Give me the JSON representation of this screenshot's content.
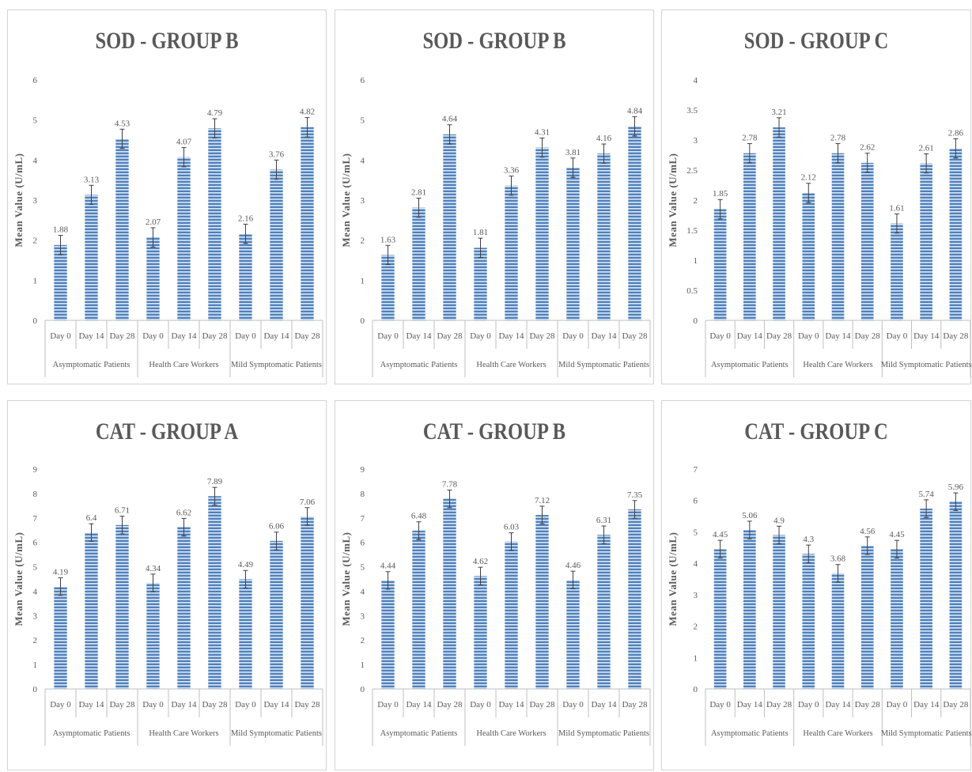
{
  "chart_data": [
    {
      "type": "bar",
      "title": "SOD - GROUP B",
      "ylabel": "Mean Value (U/mL)",
      "ylim": [
        0,
        6
      ],
      "yticks": [
        "0",
        "1",
        "2",
        "3",
        "4",
        "5",
        "6"
      ],
      "groups": [
        "Asymptomatic Patients",
        "Health Care Workers",
        "Mild Symptomatic Patients"
      ],
      "categories": [
        "Day 0",
        "Day 14",
        "Day 28",
        "Day 0",
        "Day 14",
        "Day 28",
        "Day 0",
        "Day 14",
        "Day 28"
      ],
      "values": [
        1.88,
        3.13,
        4.53,
        2.07,
        4.07,
        4.79,
        2.16,
        3.76,
        4.82
      ],
      "labels": [
        "1.88",
        "3.13",
        "4.53",
        "2.07",
        "4.07",
        "4.79",
        "2.16",
        "3.76",
        "4.82"
      ],
      "error_bars": true
    },
    {
      "type": "bar",
      "title": "SOD - GROUP B",
      "ylabel": "Mean Value (U/mL)",
      "ylim": [
        0,
        6
      ],
      "yticks": [
        "0",
        "1",
        "2",
        "3",
        "4",
        "5",
        "6"
      ],
      "groups": [
        "Asymptomatic Patients",
        "Health Care Workers",
        "Mild Symptomatic Patients"
      ],
      "categories": [
        "Day 0",
        "Day 14",
        "Day 28",
        "Day 0",
        "Day 14",
        "Day 28",
        "Day 0",
        "Day 14",
        "Day 28"
      ],
      "values": [
        1.63,
        2.81,
        4.64,
        1.81,
        3.36,
        4.31,
        3.81,
        4.16,
        4.84
      ],
      "labels": [
        "1.63",
        "2.81",
        "4.64",
        "1.81",
        "3.36",
        "4.31",
        "3.81",
        "4.16",
        "4.84"
      ],
      "error_bars": true
    },
    {
      "type": "bar",
      "title": "SOD - GROUP C",
      "ylabel": "Mean Value (U/mL)",
      "ylim": [
        0,
        4
      ],
      "yticks": [
        "0",
        "0.5",
        "1",
        "1.5",
        "2",
        "2.5",
        "3",
        "3.5",
        "4"
      ],
      "groups": [
        "Asymptomatic Patients",
        "Health Care Workers",
        "Mild Symptomatic Patients"
      ],
      "categories": [
        "Day 0",
        "Day 14",
        "Day 28",
        "Day 0",
        "Day 14",
        "Day 28",
        "Day 0",
        "Day 14",
        "Day 28"
      ],
      "values": [
        1.85,
        2.78,
        3.21,
        2.12,
        2.78,
        2.62,
        1.61,
        2.61,
        2.86
      ],
      "labels": [
        "1.85",
        "2.78",
        "3.21",
        "2.12",
        "2.78",
        "2.62",
        "1.61",
        "2.61",
        "2.86"
      ],
      "error_bars": true
    },
    {
      "type": "bar",
      "title": "CAT - GROUP A",
      "ylabel": "Mean Value (U/mL)",
      "ylim": [
        0,
        9
      ],
      "yticks": [
        "0",
        "1",
        "2",
        "3",
        "4",
        "5",
        "6",
        "7",
        "8",
        "9"
      ],
      "groups": [
        "Asymptomatic Patients",
        "Health Care Workers",
        "Mild Symptomatic Patients"
      ],
      "categories": [
        "Day 0",
        "Day 14",
        "Day 28",
        "Day 0",
        "Day 14",
        "Day 28",
        "Day 0",
        "Day 14",
        "Day 28"
      ],
      "values": [
        4.19,
        6.4,
        6.71,
        4.34,
        6.62,
        7.89,
        4.49,
        6.06,
        7.06
      ],
      "labels": [
        "4.19",
        "6.4",
        "6.71",
        "4.34",
        "6.62",
        "7.89",
        "4.49",
        "6.06",
        "7.06"
      ],
      "error_bars": true
    },
    {
      "type": "bar",
      "title": "CAT - GROUP B",
      "ylabel": "Mean Value (U/mL)",
      "ylim": [
        0,
        9
      ],
      "yticks": [
        "0",
        "1",
        "2",
        "3",
        "4",
        "5",
        "6",
        "7",
        "8",
        "9"
      ],
      "groups": [
        "Asymptomatic Patients",
        "Health Care Workers",
        "Mild Symptomatic Patients"
      ],
      "categories": [
        "Day 0",
        "Day 14",
        "Day 28",
        "Day 0",
        "Day 14",
        "Day 28",
        "Day 0",
        "Day 14",
        "Day 28"
      ],
      "values": [
        4.44,
        6.48,
        7.78,
        4.62,
        6.03,
        7.12,
        4.46,
        6.31,
        7.35
      ],
      "labels": [
        "4.44",
        "6.48",
        "7.78",
        "4.62",
        "6.03",
        "7.12",
        "4.46",
        "6.31",
        "7.35"
      ],
      "error_bars": true
    },
    {
      "type": "bar",
      "title": "CAT - GROUP C",
      "ylabel": "Mean Value (U/mL)",
      "ylim": [
        0,
        7
      ],
      "yticks": [
        "0",
        "1",
        "2",
        "3",
        "4",
        "5",
        "6",
        "7"
      ],
      "groups": [
        "Asymptomatic Patients",
        "Health Care Workers",
        "Mild Symptomatic Patients"
      ],
      "categories": [
        "Day 0",
        "Day 14",
        "Day 28",
        "Day 0",
        "Day 14",
        "Day 28",
        "Day 0",
        "Day 14",
        "Day 28"
      ],
      "values": [
        4.45,
        5.06,
        4.9,
        4.3,
        3.68,
        4.56,
        4.45,
        5.74,
        5.96
      ],
      "labels": [
        "4.45",
        "5.06",
        "4.9",
        "4.3",
        "3.68",
        "4.56",
        "4.45",
        "5.74",
        "5.96"
      ],
      "error_bars": true
    }
  ],
  "colors": {
    "bar_fill": "#4f81bd",
    "bar_stripe": "#ffffff",
    "text": "#595959",
    "axis": "#bfbfbf",
    "error_bar": "#404040"
  }
}
